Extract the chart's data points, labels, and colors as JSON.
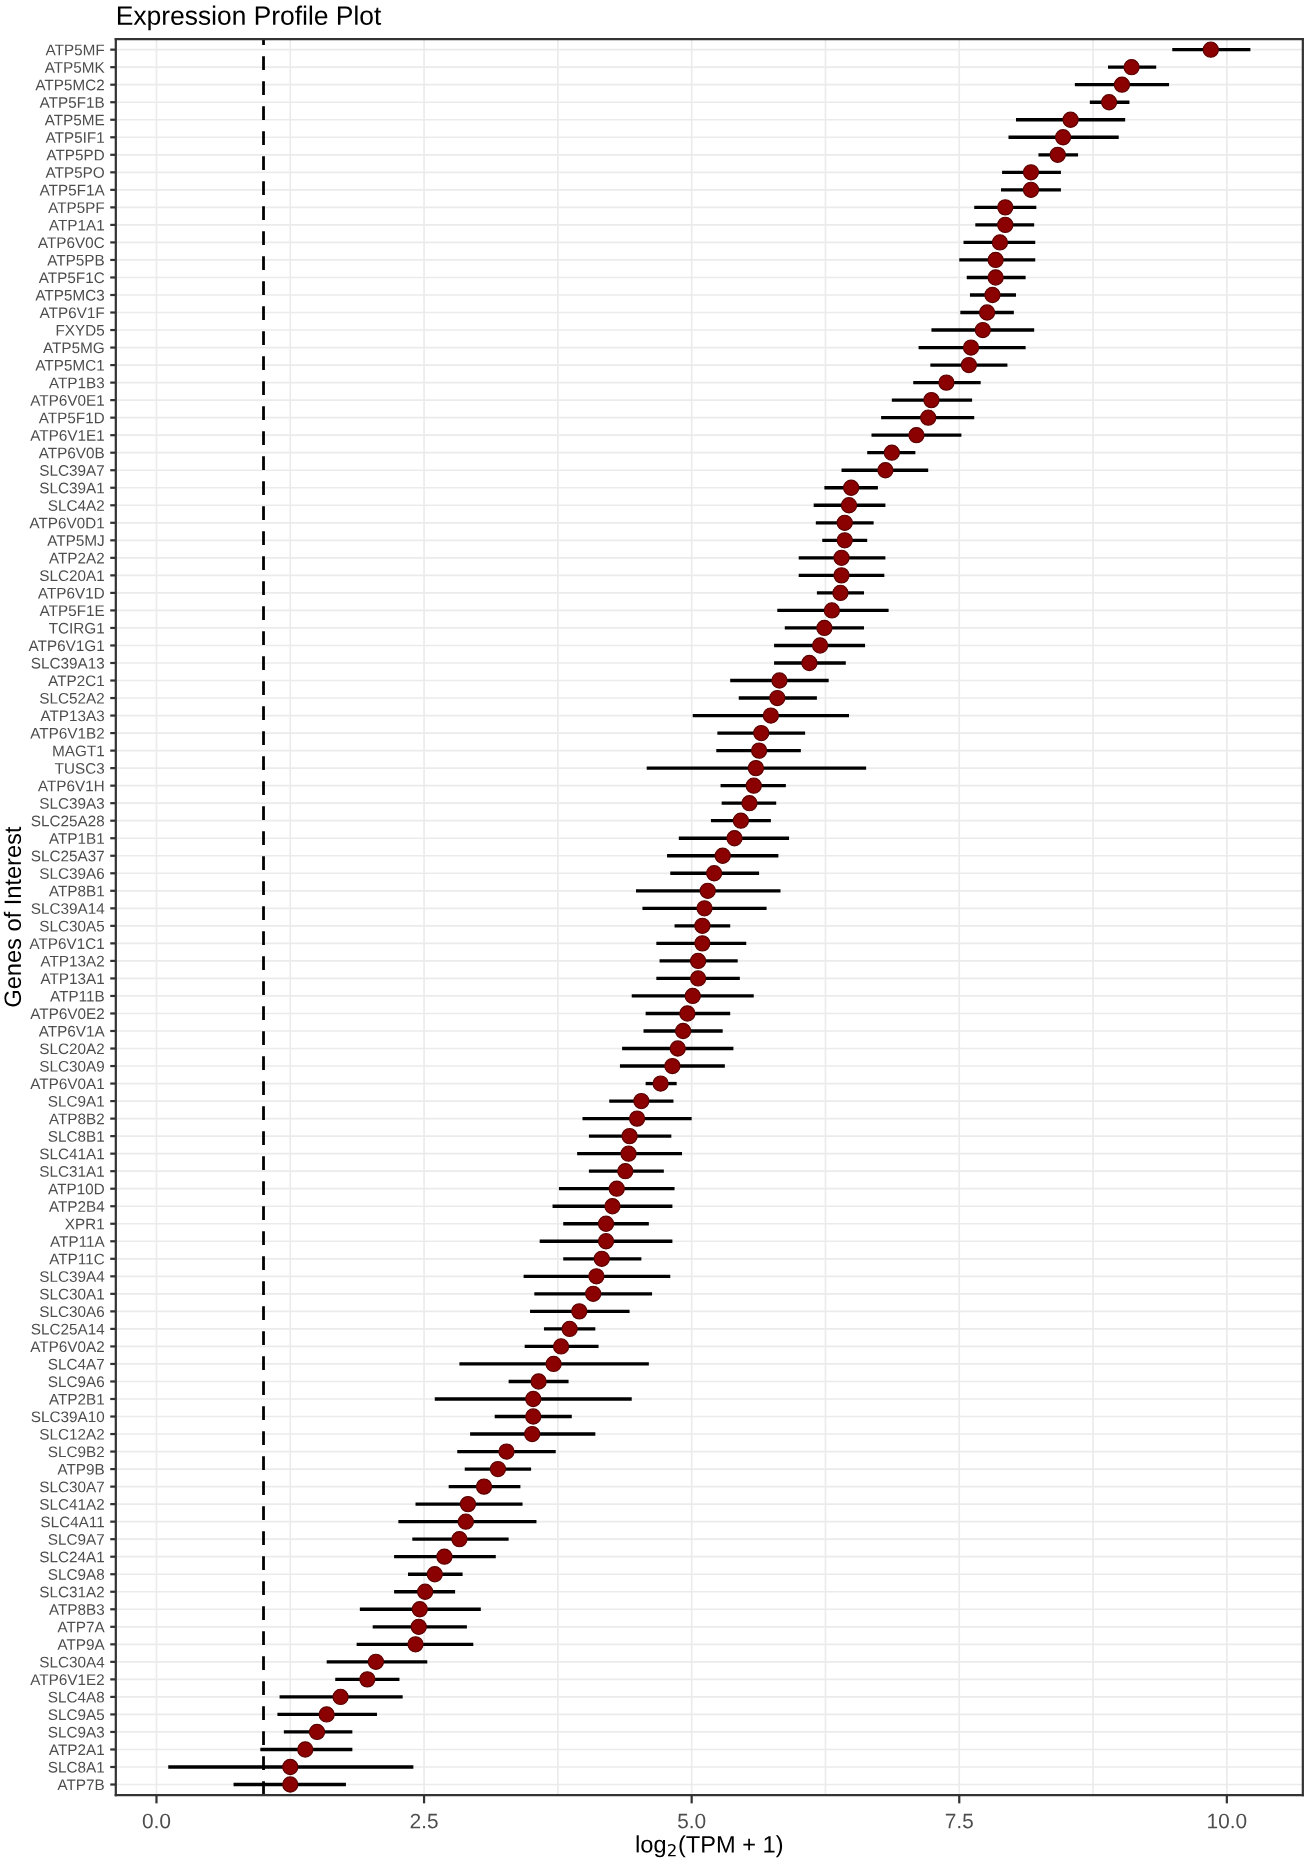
{
  "chart_data": {
    "type": "scatter",
    "orientation": "horizontal",
    "title": "Expression Profile Plot",
    "xlabel": "log$_{2}$(TPM + 1)",
    "ylabel": "Genes of Interest",
    "categories": [
      "ATP5MF",
      "ATP5MK",
      "ATP5MC2",
      "ATP5F1B",
      "ATP5ME",
      "ATP5IF1",
      "ATP5PD",
      "ATP5PO",
      "ATP5F1A",
      "ATP5PF",
      "ATP1A1",
      "ATP6V0C",
      "ATP5PB",
      "ATP5F1C",
      "ATP5MC3",
      "ATP6V1F",
      "FXYD5",
      "ATP5MG",
      "ATP5MC1",
      "ATP1B3",
      "ATP6V0E1",
      "ATP5F1D",
      "ATP6V1E1",
      "ATP6V0B",
      "SLC39A7",
      "SLC39A1",
      "SLC4A2",
      "ATP6V0D1",
      "ATP5MJ",
      "ATP2A2",
      "SLC20A1",
      "ATP6V1D",
      "ATP5F1E",
      "TCIRG1",
      "ATP6V1G1",
      "SLC39A13",
      "ATP2C1",
      "SLC52A2",
      "ATP13A3",
      "ATP6V1B2",
      "MAGT1",
      "TUSC3",
      "ATP6V1H",
      "SLC39A3",
      "SLC25A28",
      "ATP1B1",
      "SLC25A37",
      "SLC39A6",
      "ATP8B1",
      "SLC39A14",
      "SLC30A5",
      "ATP6V1C1",
      "ATP13A2",
      "ATP13A1",
      "ATP11B",
      "ATP6V0E2",
      "ATP6V1A",
      "SLC20A2",
      "SLC30A9",
      "ATP6V0A1",
      "SLC9A1",
      "ATP8B2",
      "SLC8B1",
      "SLC41A1",
      "SLC31A1",
      "ATP10D",
      "ATP2B4",
      "XPR1",
      "ATP11A",
      "ATP11C",
      "SLC39A4",
      "SLC30A1",
      "SLC30A6",
      "SLC25A14",
      "ATP6V0A2",
      "SLC4A7",
      "SLC9A6",
      "ATP2B1",
      "SLC39A10",
      "SLC12A2",
      "SLC9B2",
      "ATP9B",
      "SLC30A7",
      "SLC41A2",
      "SLC4A11",
      "SLC9A7",
      "SLC24A1",
      "SLC9A8",
      "SLC31A2",
      "ATP8B3",
      "ATP7A",
      "ATP9A",
      "SLC30A4",
      "ATP6V1E2",
      "SLC4A8",
      "SLC9A5",
      "SLC9A3",
      "ATP2A1",
      "SLC8A1",
      "ATP7B"
    ],
    "series": [
      {
        "color": "#8b0000",
        "values": [
          9.85,
          9.11,
          9.02,
          8.9,
          8.54,
          8.47,
          8.42,
          8.17,
          8.17,
          7.93,
          7.93,
          7.88,
          7.84,
          7.84,
          7.81,
          7.76,
          7.72,
          7.61,
          7.59,
          7.38,
          7.24,
          7.21,
          7.1,
          6.87,
          6.81,
          6.49,
          6.47,
          6.43,
          6.43,
          6.4,
          6.4,
          6.39,
          6.31,
          6.24,
          6.2,
          6.1,
          5.82,
          5.8,
          5.74,
          5.65,
          5.63,
          5.6,
          5.58,
          5.54,
          5.46,
          5.4,
          5.29,
          5.21,
          5.15,
          5.12,
          5.1,
          5.1,
          5.06,
          5.06,
          5.01,
          4.96,
          4.92,
          4.87,
          4.82,
          4.71,
          4.53,
          4.49,
          4.42,
          4.41,
          4.38,
          4.3,
          4.26,
          4.2,
          4.2,
          4.16,
          4.11,
          4.08,
          3.95,
          3.86,
          3.78,
          3.71,
          3.57,
          3.52,
          3.52,
          3.51,
          3.27,
          3.19,
          3.06,
          2.91,
          2.89,
          2.83,
          2.69,
          2.6,
          2.51,
          2.46,
          2.45,
          2.42,
          2.05,
          1.97,
          1.72,
          1.59,
          1.5,
          1.39,
          1.25,
          1.25
        ],
        "errors": [
          [
            9.49,
            10.22
          ],
          [
            8.89,
            9.34
          ],
          [
            8.58,
            9.46
          ],
          [
            8.72,
            9.09
          ],
          [
            8.03,
            9.05
          ],
          [
            7.96,
            8.99
          ],
          [
            8.24,
            8.61
          ],
          [
            7.9,
            8.45
          ],
          [
            7.89,
            8.45
          ],
          [
            7.64,
            8.22
          ],
          [
            7.65,
            8.2
          ],
          [
            7.54,
            8.21
          ],
          [
            7.5,
            8.21
          ],
          [
            7.57,
            8.12
          ],
          [
            7.6,
            8.03
          ],
          [
            7.51,
            8.01
          ],
          [
            7.24,
            8.2
          ],
          [
            7.12,
            8.12
          ],
          [
            7.23,
            7.95
          ],
          [
            7.07,
            7.7
          ],
          [
            6.87,
            7.62
          ],
          [
            6.77,
            7.64
          ],
          [
            6.68,
            7.52
          ],
          [
            6.64,
            7.09
          ],
          [
            6.4,
            7.21
          ],
          [
            6.24,
            6.74
          ],
          [
            6.14,
            6.81
          ],
          [
            6.16,
            6.7
          ],
          [
            6.22,
            6.64
          ],
          [
            6.0,
            6.81
          ],
          [
            6.0,
            6.8
          ],
          [
            6.17,
            6.61
          ],
          [
            5.8,
            6.84
          ],
          [
            5.87,
            6.61
          ],
          [
            5.77,
            6.62
          ],
          [
            5.77,
            6.44
          ],
          [
            5.36,
            6.28
          ],
          [
            5.44,
            6.17
          ],
          [
            5.01,
            6.47
          ],
          [
            5.24,
            6.06
          ],
          [
            5.23,
            6.02
          ],
          [
            4.58,
            6.63
          ],
          [
            5.27,
            5.88
          ],
          [
            5.28,
            5.79
          ],
          [
            5.18,
            5.74
          ],
          [
            4.88,
            5.91
          ],
          [
            4.77,
            5.81
          ],
          [
            4.8,
            5.63
          ],
          [
            4.48,
            5.83
          ],
          [
            4.54,
            5.7
          ],
          [
            4.84,
            5.36
          ],
          [
            4.67,
            5.51
          ],
          [
            4.7,
            5.43
          ],
          [
            4.67,
            5.45
          ],
          [
            4.44,
            5.58
          ],
          [
            4.57,
            5.36
          ],
          [
            4.55,
            5.29
          ],
          [
            4.35,
            5.39
          ],
          [
            4.33,
            5.31
          ],
          [
            4.57,
            4.86
          ],
          [
            4.23,
            4.83
          ],
          [
            3.98,
            5.0
          ],
          [
            4.04,
            4.81
          ],
          [
            3.93,
            4.91
          ],
          [
            4.04,
            4.74
          ],
          [
            3.76,
            4.84
          ],
          [
            3.7,
            4.82
          ],
          [
            3.8,
            4.6
          ],
          [
            3.58,
            4.82
          ],
          [
            3.8,
            4.53
          ],
          [
            3.43,
            4.8
          ],
          [
            3.53,
            4.63
          ],
          [
            3.49,
            4.42
          ],
          [
            3.62,
            4.1
          ],
          [
            3.44,
            4.13
          ],
          [
            2.83,
            4.6
          ],
          [
            3.29,
            3.85
          ],
          [
            2.6,
            4.44
          ],
          [
            3.16,
            3.88
          ],
          [
            2.93,
            4.1
          ],
          [
            2.81,
            3.73
          ],
          [
            2.88,
            3.5
          ],
          [
            2.73,
            3.4
          ],
          [
            2.42,
            3.42
          ],
          [
            2.26,
            3.55
          ],
          [
            2.39,
            3.29
          ],
          [
            2.22,
            3.17
          ],
          [
            2.35,
            2.86
          ],
          [
            2.22,
            2.79
          ],
          [
            1.9,
            3.03
          ],
          [
            2.02,
            2.9
          ],
          [
            1.87,
            2.96
          ],
          [
            1.59,
            2.53
          ],
          [
            1.67,
            2.27
          ],
          [
            1.15,
            2.3
          ],
          [
            1.13,
            2.06
          ],
          [
            1.19,
            1.83
          ],
          [
            0.97,
            1.83
          ],
          [
            0.11,
            2.4
          ],
          [
            0.72,
            1.77
          ]
        ]
      }
    ],
    "xlim": [
      -0.38,
      10.71
    ],
    "xticks": [
      {
        "value": 0,
        "label": "0.0"
      },
      2.5,
      {
        "value": 5,
        "label": "5.0"
      },
      7.5,
      {
        "value": 10,
        "label": "10.0"
      }
    ],
    "ref_lines": [
      {
        "axis": "x",
        "value": 1,
        "line_style": "dashed",
        "color": "#000000"
      }
    ],
    "grid": true,
    "marker": "circle",
    "legend": false
  }
}
